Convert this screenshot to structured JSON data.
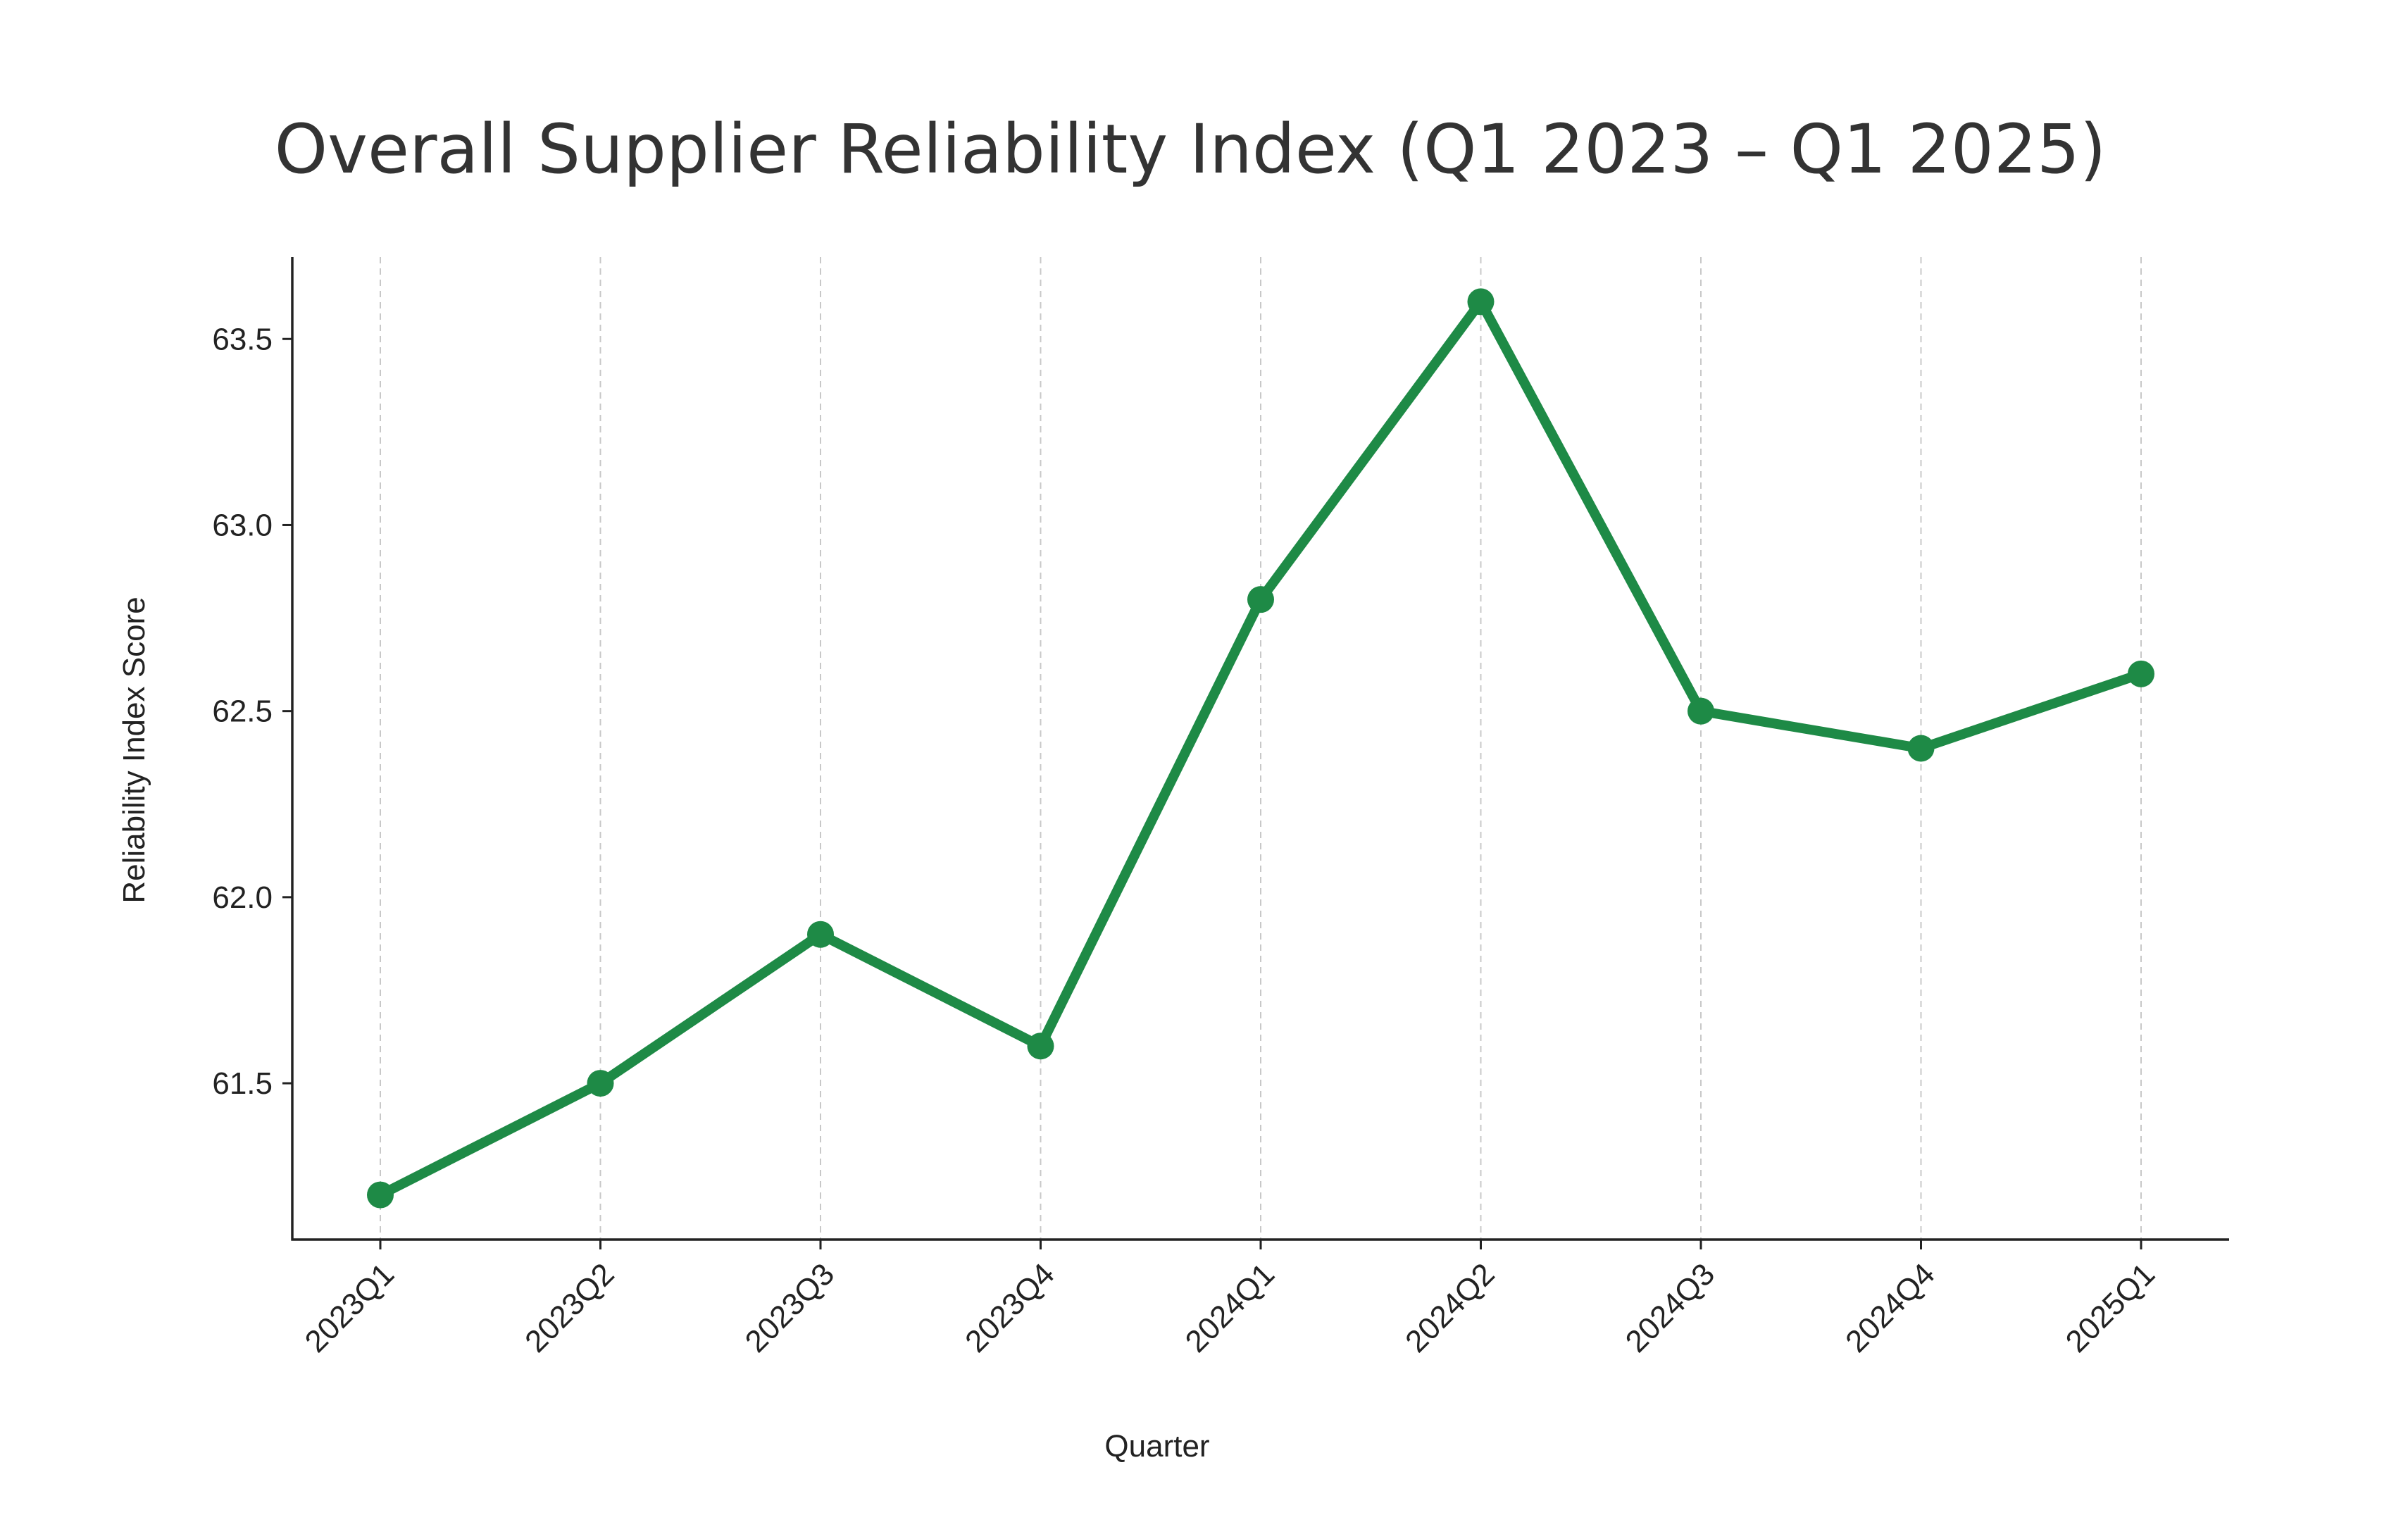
{
  "chart_data": {
    "type": "line",
    "title": "Overall Supplier Reliability Index (Q1 2023 – Q1 2025)",
    "xlabel": "Quarter",
    "ylabel": "Reliability Index Score",
    "categories": [
      "2023Q1",
      "2023Q2",
      "2023Q3",
      "2023Q4",
      "2024Q1",
      "2024Q2",
      "2024Q3",
      "2024Q4",
      "2025Q1"
    ],
    "series": [
      {
        "values": [
          61.2,
          61.5,
          61.9,
          61.6,
          62.8,
          63.6,
          62.5,
          62.4,
          62.6
        ],
        "color": "#1e8a46",
        "marker": "circle"
      }
    ],
    "ylim": [
      61.08,
      63.72
    ],
    "yticks": [
      61.5,
      62.0,
      62.5,
      63.0,
      63.5
    ],
    "ytick_labels": [
      "61.5",
      "62.0",
      "62.5",
      "63.0",
      "63.5"
    ],
    "grid": "vertical dashed",
    "legend": "none"
  }
}
